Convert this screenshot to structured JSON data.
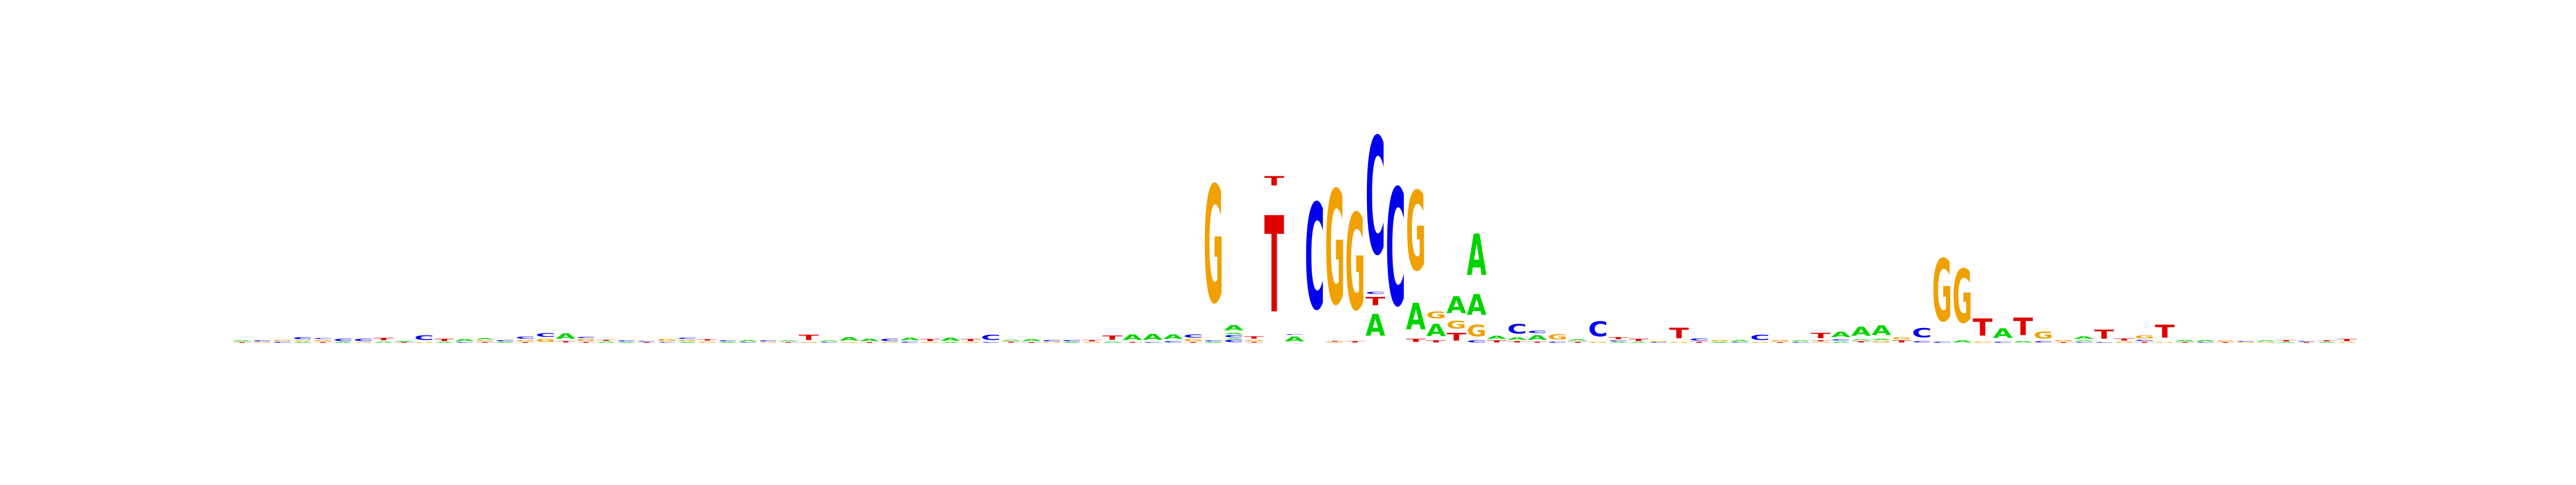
{
  "logo": {
    "colors": {
      "A": "#00d400",
      "C": "#0000ee",
      "G": "#f0a000",
      "T": "#e00000"
    },
    "columns": [
      [
        [
          "T",
          0.02
        ],
        [
          "A",
          0.03
        ]
      ],
      [
        [
          "G",
          0.02
        ],
        [
          "C",
          0.03
        ]
      ],
      [
        [
          "C",
          0.03
        ],
        [
          "G",
          0.03
        ]
      ],
      [
        [
          "A",
          0.02
        ],
        [
          "G",
          0.03
        ],
        [
          "C",
          0.05
        ]
      ],
      [
        [
          "T",
          0.02
        ],
        [
          "G",
          0.04
        ],
        [
          "C",
          0.03
        ]
      ],
      [
        [
          "A",
          0.02
        ],
        [
          "C",
          0.06
        ]
      ],
      [
        [
          "G",
          0.02
        ],
        [
          "C",
          0.06
        ]
      ],
      [
        [
          "A",
          0.03
        ],
        [
          "T",
          0.06
        ]
      ],
      [
        [
          "T",
          0.02
        ],
        [
          "A",
          0.02
        ]
      ],
      [
        [
          "G",
          0.02
        ],
        [
          "C",
          0.13
        ]
      ],
      [
        [
          "A",
          0.02
        ],
        [
          "T",
          0.06
        ]
      ],
      [
        [
          "C",
          0.02
        ],
        [
          "A",
          0.05
        ]
      ],
      [
        [
          "T",
          0.02
        ],
        [
          "G",
          0.03
        ],
        [
          "A",
          0.04
        ]
      ],
      [
        [
          "A",
          0.02
        ],
        [
          "C",
          0.04
        ]
      ],
      [
        [
          "T",
          0.02
        ],
        [
          "G",
          0.04
        ],
        [
          "C",
          0.05
        ]
      ],
      [
        [
          "G",
          0.08
        ],
        [
          "C",
          0.1
        ]
      ],
      [
        [
          "T",
          0.04
        ],
        [
          "A",
          0.14
        ]
      ],
      [
        [
          "T",
          0.02
        ],
        [
          "G",
          0.05
        ],
        [
          "C",
          0.04
        ]
      ],
      [
        [
          "A",
          0.03
        ],
        [
          "T",
          0.03
        ]
      ],
      [
        [
          "A",
          0.02
        ],
        [
          "C",
          0.03
        ]
      ],
      [
        [
          "T",
          0.02
        ],
        [
          "C",
          0.02
        ]
      ],
      [
        [
          "C",
          0.02
        ],
        [
          "G",
          0.05
        ]
      ],
      [
        [
          "A",
          0.02
        ],
        [
          "G",
          0.04
        ],
        [
          "C",
          0.04
        ]
      ],
      [
        [
          "G",
          0.03
        ],
        [
          "T",
          0.04
        ]
      ],
      [
        [
          "A",
          0.02
        ],
        [
          "C",
          0.03
        ]
      ],
      [
        [
          "C",
          0.02
        ],
        [
          "A",
          0.04
        ]
      ],
      [
        [
          "G",
          0.02
        ],
        [
          "C",
          0.03
        ]
      ],
      [
        [
          "T",
          0.02
        ],
        [
          "A",
          0.03
        ]
      ],
      [
        [
          "G",
          0.02
        ],
        [
          "T",
          0.14
        ]
      ],
      [
        [
          "C",
          0.02
        ],
        [
          "A",
          0.03
        ]
      ],
      [
        [
          "G",
          0.02
        ],
        [
          "A",
          0.09
        ]
      ],
      [
        [
          "T",
          0.02
        ],
        [
          "A",
          0.06
        ]
      ],
      [
        [
          "G",
          0.02
        ],
        [
          "C",
          0.06
        ]
      ],
      [
        [
          "C",
          0.03
        ],
        [
          "A",
          0.07
        ]
      ],
      [
        [
          "G",
          0.02
        ],
        [
          "T",
          0.05
        ]
      ],
      [
        [
          "A",
          0.02
        ],
        [
          "A",
          0.08
        ]
      ],
      [
        [
          "G",
          0.02
        ],
        [
          "T",
          0.05
        ]
      ],
      [
        [
          "C",
          0.02
        ],
        [
          "C",
          0.14
        ]
      ],
      [
        [
          "T",
          0.03
        ],
        [
          "A",
          0.03
        ]
      ],
      [
        [
          "T",
          0.02
        ],
        [
          "A",
          0.05
        ]
      ],
      [
        [
          "G",
          0.02
        ],
        [
          "C",
          0.04
        ]
      ],
      [
        [
          "A",
          0.02
        ],
        [
          "C",
          0.04
        ]
      ],
      [
        [
          "G",
          0.02
        ],
        [
          "T",
          0.04
        ]
      ],
      [
        [
          "A",
          0.03
        ],
        [
          "T",
          0.11
        ]
      ],
      [
        [
          "T",
          0.02
        ],
        [
          "A",
          0.15
        ]
      ],
      [
        [
          "C",
          0.02
        ],
        [
          "A",
          0.16
        ]
      ],
      [
        [
          "C",
          0.04
        ],
        [
          "A",
          0.12
        ]
      ],
      [
        [
          "T",
          0.02
        ],
        [
          "G",
          0.05
        ],
        [
          "C",
          0.08
        ]
      ],
      [
        [
          "A",
          0.02
        ],
        [
          "C",
          0.03
        ],
        [
          "G",
          3.1
        ]
      ],
      [
        [
          "C",
          0.06
        ],
        [
          "A",
          0.02
        ],
        [
          "C",
          0.06
        ],
        [
          "A",
          0.04
        ],
        [
          "A",
          0.14
        ]
      ],
      [
        [
          "T",
          0.02
        ],
        [
          "G",
          0.04
        ],
        [
          "T",
          0.06
        ]
      ],
      [
        [
          "T",
          2.55
        ],
        [
          "T",
          0.25
        ]
      ],
      [
        [
          "A",
          0.13
        ],
        [
          "C",
          0.02
        ]
      ],
      [
        [
          "C",
          2.8
        ]
      ],
      [
        [
          "G",
          0.02
        ],
        [
          "T",
          0.02
        ],
        [
          "G",
          3.02
        ]
      ],
      [
        [
          "T",
          0.04
        ],
        [
          "G",
          2.55
        ]
      ],
      [
        [
          "A",
          0.58
        ],
        [
          "T",
          0.22
        ],
        [
          "C",
          0.05
        ],
        [
          "C",
          3.1
        ]
      ],
      [
        [
          "C",
          3.1
        ]
      ],
      [
        [
          "T",
          0.08
        ],
        [
          "A",
          0.7
        ],
        [
          "G",
          2.1
        ]
      ],
      [
        [
          "T",
          0.05
        ],
        [
          "A",
          0.32
        ],
        [
          "G",
          0.18
        ]
      ],
      [
        [
          "T",
          0.2
        ],
        [
          "G",
          0.2
        ],
        [
          "A",
          0.45
        ]
      ],
      [
        [
          "C",
          0.05
        ],
        [
          "G",
          0.3
        ],
        [
          "A",
          0.55
        ],
        [
          "A",
          1.1
        ]
      ],
      [
        [
          "T",
          0.05
        ],
        [
          "A",
          0.08
        ]
      ],
      [
        [
          "T",
          0.04
        ],
        [
          "A",
          0.06
        ],
        [
          "C",
          0.26
        ]
      ],
      [
        [
          "T",
          0.03
        ],
        [
          "A",
          0.12
        ],
        [
          "C",
          0.06
        ]
      ],
      [
        [
          "C",
          0.03
        ],
        [
          "G",
          0.14
        ]
      ],
      [
        [
          "T",
          0.03
        ],
        [
          "A",
          0.04
        ]
      ],
      [
        [
          "G",
          0.03
        ],
        [
          "C",
          0.4
        ]
      ],
      [
        [
          "A",
          0.02
        ],
        [
          "C",
          0.03
        ],
        [
          "T",
          0.05
        ]
      ],
      [
        [
          "A",
          0.02
        ],
        [
          "T",
          0.06
        ]
      ],
      [
        [
          "C",
          0.02
        ],
        [
          "G",
          0.02
        ]
      ],
      [
        [
          "G",
          0.02
        ],
        [
          "T",
          0.28
        ]
      ],
      [
        [
          "T",
          0.03
        ],
        [
          "C",
          0.05
        ]
      ],
      [
        [
          "A",
          0.02
        ],
        [
          "G",
          0.04
        ]
      ],
      [
        [
          "C",
          0.02
        ],
        [
          "A",
          0.04
        ]
      ],
      [
        [
          "G",
          0.02
        ],
        [
          "C",
          0.14
        ]
      ],
      [
        [
          "T",
          0.02
        ],
        [
          "G",
          0.04
        ]
      ],
      [
        [
          "C",
          0.02
        ],
        [
          "A",
          0.03
        ]
      ],
      [
        [
          "G",
          0.02
        ],
        [
          "T",
          0.03
        ],
        [
          "T",
          0.14
        ]
      ],
      [
        [
          "A",
          0.03
        ],
        [
          "C",
          0.04
        ],
        [
          "A",
          0.14
        ]
      ],
      [
        [
          "T",
          0.04
        ],
        [
          "A",
          0.03
        ],
        [
          "A",
          0.24
        ]
      ],
      [
        [
          "G",
          0.04
        ],
        [
          "A",
          0.04
        ],
        [
          "A",
          0.26
        ]
      ],
      [
        [
          "T",
          0.05
        ],
        [
          "G",
          0.05
        ]
      ],
      [
        [
          "C",
          0.04
        ],
        [
          "C",
          0.25
        ]
      ],
      [
        [
          "C",
          0.03
        ],
        [
          "G",
          1.65
        ]
      ],
      [
        [
          "A",
          0.05
        ],
        [
          "G",
          1.42
        ]
      ],
      [
        [
          "G",
          0.03
        ],
        [
          "T",
          0.45
        ]
      ],
      [
        [
          "C",
          0.03
        ],
        [
          "A",
          0.26
        ]
      ],
      [
        [
          "A",
          0.04
        ],
        [
          "T",
          0.46
        ]
      ],
      [
        [
          "C",
          0.04
        ],
        [
          "G",
          0.18
        ]
      ],
      [
        [
          "T",
          0.02
        ],
        [
          "G",
          0.04
        ]
      ],
      [
        [
          "C",
          0.02
        ],
        [
          "A",
          0.03
        ],
        [
          "A",
          0.07
        ]
      ],
      [
        [
          "C",
          0.02
        ],
        [
          "T",
          0.24
        ]
      ],
      [
        [
          "G",
          0.03
        ],
        [
          "T",
          0.05
        ]
      ],
      [
        [
          "T",
          0.03
        ],
        [
          "C",
          0.03
        ],
        [
          "G",
          0.08
        ]
      ],
      [
        [
          "G",
          0.02
        ],
        [
          "T",
          0.34
        ]
      ],
      [
        [
          "T",
          0.02
        ],
        [
          "A",
          0.04
        ]
      ],
      [
        [
          "C",
          0.02
        ],
        [
          "A",
          0.04
        ]
      ],
      [
        [
          "T",
          0.02
        ],
        [
          "G",
          0.03
        ]
      ],
      [
        [
          "G",
          0.02
        ],
        [
          "C",
          0.02
        ]
      ],
      [
        [
          "G",
          0.02
        ],
        [
          "A",
          0.03
        ]
      ],
      [
        [
          "A",
          0.02
        ],
        [
          "T",
          0.04
        ]
      ],
      [
        [
          "T",
          0.02
        ],
        [
          "C",
          0.02
        ]
      ],
      [
        [
          "A",
          0.02
        ],
        [
          "T",
          0.03
        ]
      ],
      [
        [
          "G",
          0.02
        ],
        [
          "T",
          0.05
        ]
      ]
    ]
  }
}
